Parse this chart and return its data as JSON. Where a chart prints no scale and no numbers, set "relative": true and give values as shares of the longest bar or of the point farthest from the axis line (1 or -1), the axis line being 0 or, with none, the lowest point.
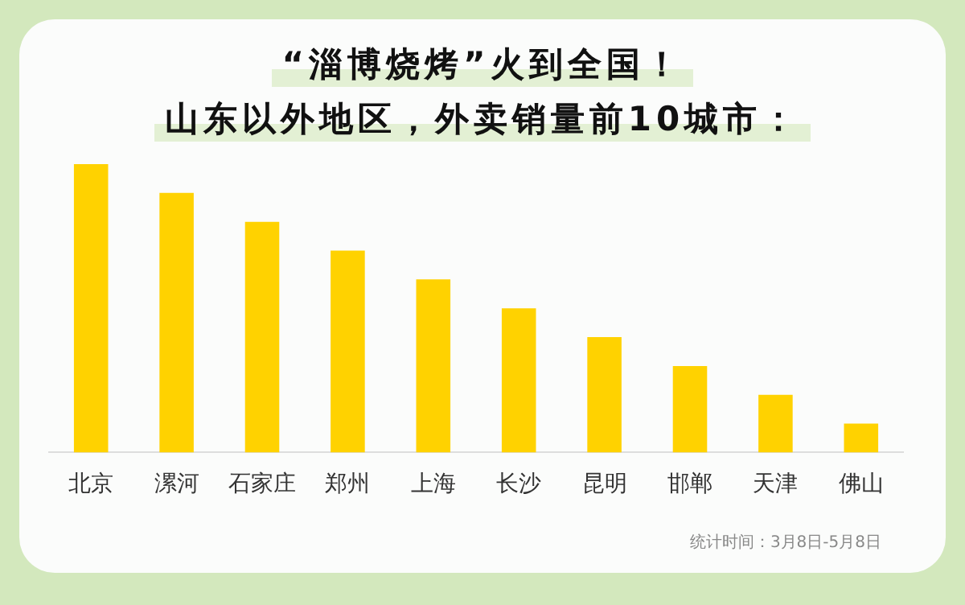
{
  "chart_data": {
    "type": "bar",
    "title": "“淄博烧烤”火到全国！",
    "subtitle": "山东以外地区，外卖销量前10城市：",
    "categories": [
      "北京",
      "漯河",
      "石家庄",
      "郑州",
      "上海",
      "长沙",
      "昆明",
      "邯郸",
      "天津",
      "佛山"
    ],
    "values": [
      1,
      0.9,
      0.8,
      0.7,
      0.6,
      0.5,
      0.4,
      0.3,
      0.2,
      0.1
    ],
    "color": "#ffd200",
    "relative": true,
    "grid": false,
    "legend": false,
    "annotations": [
      "统计时间：3月8日-5月8日"
    ]
  }
}
